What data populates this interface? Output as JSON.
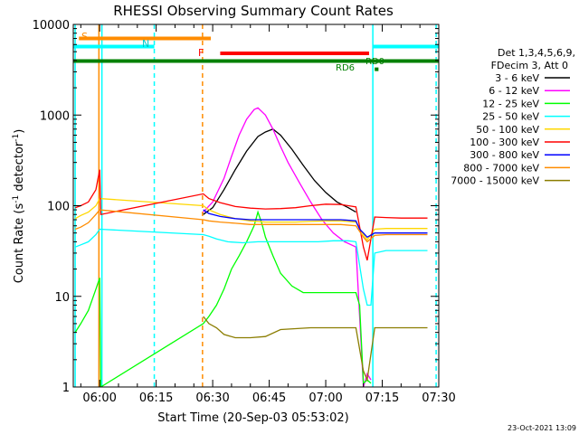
{
  "chart_data": {
    "type": "line",
    "title": "RHESSI Observing Summary Count Rates",
    "xlabel": "Start Time (20-Sep-03 05:53:02)",
    "ylabel": "Count Rate (s⁻¹ detector⁻¹)",
    "ylabel_main": "Count Rate (s",
    "ylabel_sup1": "-1",
    "ylabel_mid": " detector",
    "ylabel_sup2": "-1",
    "ylabel_end": ")",
    "yscale": "log",
    "ylim": [
      1,
      10000
    ],
    "xlim_minutes": [
      53.0,
      150.0
    ],
    "x_unit_note": "minutes after 05:00 UT",
    "x_ticks": [
      {
        "value": 60,
        "label": "06:00"
      },
      {
        "value": 75,
        "label": "06:15"
      },
      {
        "value": 90,
        "label": "06:30"
      },
      {
        "value": 105,
        "label": "06:45"
      },
      {
        "value": 120,
        "label": "07:00"
      },
      {
        "value": 135,
        "label": "07:15"
      },
      {
        "value": 150,
        "label": "07:30"
      }
    ],
    "y_ticks": [
      {
        "value": 1,
        "label": "1"
      },
      {
        "value": 10,
        "label": "10"
      },
      {
        "value": 100,
        "label": "100"
      },
      {
        "value": 1000,
        "label": "1000"
      },
      {
        "value": 10000,
        "label": "10000"
      }
    ],
    "legend": {
      "placement": "right",
      "header_line1": "Det 1,3,4,5,6,9,",
      "header_line2": "FDecim 3, Att 0"
    },
    "series": [
      {
        "name": "3 - 6 keV",
        "color": "#000000",
        "points": [
          [
            87.5,
            80
          ],
          [
            90,
            95
          ],
          [
            93,
            150
          ],
          [
            96,
            250
          ],
          [
            99,
            400
          ],
          [
            102,
            580
          ],
          [
            104,
            650
          ],
          [
            106,
            700
          ],
          [
            108,
            600
          ],
          [
            111,
            420
          ],
          [
            114,
            280
          ],
          [
            117,
            190
          ],
          [
            120,
            140
          ],
          [
            123,
            110
          ],
          [
            126,
            95
          ],
          [
            128,
            85
          ]
        ]
      },
      {
        "name": "6 - 12 keV",
        "color": "#ff00ff",
        "points": [
          [
            87.5,
            85
          ],
          [
            90,
            110
          ],
          [
            93,
            200
          ],
          [
            95,
            350
          ],
          [
            97,
            600
          ],
          [
            99,
            900
          ],
          [
            101,
            1150
          ],
          [
            102,
            1200
          ],
          [
            104,
            1000
          ],
          [
            106,
            700
          ],
          [
            108,
            450
          ],
          [
            110,
            300
          ],
          [
            113,
            180
          ],
          [
            116,
            110
          ],
          [
            119,
            70
          ],
          [
            122,
            50
          ],
          [
            125,
            40
          ],
          [
            128,
            35
          ],
          [
            130,
            1.0
          ],
          [
            131,
            1.4
          ],
          [
            132,
            1.2
          ]
        ]
      },
      {
        "name": "12 - 25 keV",
        "color": "#00ff00",
        "points": [
          [
            53.5,
            4
          ],
          [
            55,
            5
          ],
          [
            57,
            7
          ],
          [
            59,
            12
          ],
          [
            60,
            16
          ],
          [
            60.3,
            1.0
          ],
          [
            87.5,
            5
          ],
          [
            89,
            6
          ],
          [
            91,
            8
          ],
          [
            93,
            12
          ],
          [
            95,
            20
          ],
          [
            97,
            28
          ],
          [
            99,
            40
          ],
          [
            101,
            60
          ],
          [
            102,
            85
          ],
          [
            103,
            65
          ],
          [
            104,
            45
          ],
          [
            106,
            28
          ],
          [
            108,
            18
          ],
          [
            111,
            13
          ],
          [
            114,
            11
          ],
          [
            118,
            11
          ],
          [
            122,
            11
          ],
          [
            126,
            11
          ],
          [
            128,
            11
          ],
          [
            129,
            8
          ],
          [
            130,
            1.1
          ],
          [
            131,
            1.2
          ],
          [
            132,
            1.1
          ]
        ]
      },
      {
        "name": "25 - 50 keV",
        "color": "#00ffff",
        "points": [
          [
            53.5,
            35
          ],
          [
            55,
            37
          ],
          [
            57,
            40
          ],
          [
            59,
            48
          ],
          [
            60,
            55
          ],
          [
            87.5,
            48
          ],
          [
            89,
            46
          ],
          [
            91,
            43
          ],
          [
            94,
            40
          ],
          [
            98,
            39
          ],
          [
            102,
            40
          ],
          [
            106,
            40
          ],
          [
            110,
            40
          ],
          [
            114,
            40
          ],
          [
            118,
            40
          ],
          [
            122,
            41
          ],
          [
            126,
            41
          ],
          [
            128,
            40
          ],
          [
            130,
            12
          ],
          [
            131,
            8
          ],
          [
            132,
            8
          ],
          [
            133,
            30
          ],
          [
            136,
            32
          ],
          [
            140,
            32
          ],
          [
            144,
            32
          ],
          [
            147,
            32
          ]
        ]
      },
      {
        "name": "50 - 100 keV",
        "color": "#ffd700",
        "points": [
          [
            53.5,
            72
          ],
          [
            55,
            78
          ],
          [
            57,
            85
          ],
          [
            59,
            100
          ],
          [
            60,
            120
          ],
          [
            87.5,
            100
          ],
          [
            89,
            90
          ],
          [
            92,
            80
          ],
          [
            96,
            72
          ],
          [
            100,
            68
          ],
          [
            104,
            66
          ],
          [
            108,
            66
          ],
          [
            112,
            66
          ],
          [
            116,
            67
          ],
          [
            120,
            68
          ],
          [
            124,
            68
          ],
          [
            128,
            66
          ],
          [
            130,
            48
          ],
          [
            131,
            42
          ],
          [
            133,
            55
          ],
          [
            136,
            56
          ],
          [
            140,
            56
          ],
          [
            144,
            56
          ],
          [
            147,
            56
          ]
        ]
      },
      {
        "name": "100 - 300 keV",
        "color": "#ff0000",
        "points": [
          [
            53.5,
            95
          ],
          [
            55,
            100
          ],
          [
            57,
            110
          ],
          [
            59,
            150
          ],
          [
            60,
            250
          ],
          [
            60.3,
            80
          ],
          [
            87.5,
            135
          ],
          [
            89,
            120
          ],
          [
            92,
            108
          ],
          [
            96,
            98
          ],
          [
            100,
            94
          ],
          [
            104,
            92
          ],
          [
            108,
            93
          ],
          [
            112,
            95
          ],
          [
            116,
            100
          ],
          [
            120,
            104
          ],
          [
            124,
            103
          ],
          [
            128,
            97
          ],
          [
            130,
            35
          ],
          [
            131,
            25
          ],
          [
            133,
            75
          ],
          [
            136,
            74
          ],
          [
            140,
            73
          ],
          [
            144,
            73
          ],
          [
            147,
            73
          ]
        ]
      },
      {
        "name": "300 - 800 keV",
        "color": "#0000ff",
        "points": [
          [
            87.5,
            90
          ],
          [
            89,
            82
          ],
          [
            92,
            76
          ],
          [
            96,
            72
          ],
          [
            100,
            70
          ],
          [
            104,
            70
          ],
          [
            108,
            70
          ],
          [
            112,
            70
          ],
          [
            116,
            70
          ],
          [
            120,
            70
          ],
          [
            124,
            70
          ],
          [
            128,
            68
          ],
          [
            129,
            55
          ],
          [
            130,
            50
          ],
          [
            131,
            45
          ],
          [
            133,
            50
          ],
          [
            136,
            50
          ],
          [
            140,
            50
          ],
          [
            144,
            50
          ],
          [
            147,
            50
          ]
        ]
      },
      {
        "name": "800 - 7000 keV",
        "color": "#ff8c00",
        "points": [
          [
            53.5,
            55
          ],
          [
            55,
            58
          ],
          [
            57,
            65
          ],
          [
            59,
            80
          ],
          [
            60,
            90
          ],
          [
            87.5,
            70
          ],
          [
            89,
            68
          ],
          [
            92,
            66
          ],
          [
            96,
            64
          ],
          [
            100,
            62
          ],
          [
            104,
            62
          ],
          [
            108,
            62
          ],
          [
            112,
            62
          ],
          [
            116,
            62
          ],
          [
            120,
            62
          ],
          [
            124,
            62
          ],
          [
            128,
            60
          ],
          [
            130,
            45
          ],
          [
            131,
            40
          ],
          [
            133,
            47
          ],
          [
            136,
            48
          ],
          [
            140,
            48
          ],
          [
            144,
            48
          ],
          [
            147,
            48
          ]
        ]
      },
      {
        "name": "7000 - 15000 keV",
        "color": "#8b7d00",
        "points": [
          [
            87.5,
            6
          ],
          [
            89,
            5
          ],
          [
            91,
            4.5
          ],
          [
            93,
            3.8
          ],
          [
            96,
            3.5
          ],
          [
            100,
            3.5
          ],
          [
            104,
            3.6
          ],
          [
            108,
            4.3
          ],
          [
            112,
            4.4
          ],
          [
            116,
            4.5
          ],
          [
            120,
            4.5
          ],
          [
            124,
            4.5
          ],
          [
            128,
            4.5
          ],
          [
            130,
            1.5
          ],
          [
            131,
            1.2
          ],
          [
            133,
            4.5
          ],
          [
            136,
            4.5
          ],
          [
            140,
            4.5
          ],
          [
            144,
            4.5
          ],
          [
            147,
            4.5
          ]
        ]
      }
    ],
    "flags": {
      "label_s": "S",
      "label_n": "N",
      "label_f": "F",
      "label_rd0": "RD0",
      "label_rd6": "RD6",
      "bars": [
        {
          "label": "S",
          "color": "#ff8c00",
          "x_start": 54.5,
          "x_end": 89.5,
          "y": 7000
        },
        {
          "label": "N",
          "color": "#00ffff",
          "x_start": 53.0,
          "x_end": 74.5,
          "y": 5700
        },
        {
          "label": "N",
          "color": "#00ffff",
          "x_start": 132.5,
          "x_end": 150.0,
          "y": 5700
        },
        {
          "label": "F",
          "color": "#ff0000",
          "x_start": 92.0,
          "x_end": 131.5,
          "y": 4800
        },
        {
          "label": "RD0",
          "color": "#008000",
          "x_start": 53.0,
          "x_end": 150.0,
          "y": 3950
        },
        {
          "label": "RD6",
          "color": "#008000",
          "x_start": 133.0,
          "x_end": 134.0,
          "y": 3200
        }
      ],
      "vertical_lines": [
        {
          "color": "#00ffff",
          "x": 53.5,
          "style": "solid"
        },
        {
          "color": "#ff8c00",
          "x": 59.8,
          "style": "solid"
        },
        {
          "color": "#00ffff",
          "x": 60.6,
          "style": "solid"
        },
        {
          "color": "#00ffff",
          "x": 74.5,
          "style": "dashed"
        },
        {
          "color": "#ff8c00",
          "x": 87.3,
          "style": "dashed"
        },
        {
          "color": "#00ffff",
          "x": 132.5,
          "style": "solid"
        },
        {
          "color": "#00ffff",
          "x": 149.3,
          "style": "dashed"
        }
      ]
    },
    "footer_date": "23-Oct-2021 13:09"
  }
}
